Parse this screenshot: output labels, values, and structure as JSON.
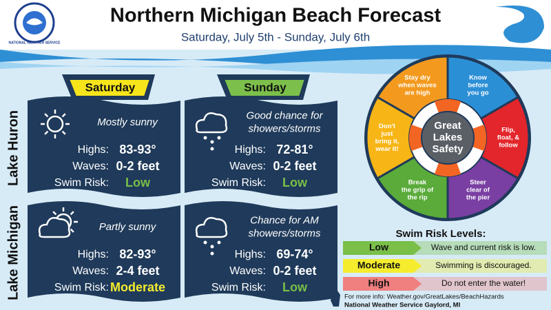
{
  "header": {
    "title": "Northern Michigan Beach Forecast",
    "subtitle": "Saturday, July 5th - Sunday, July 6th",
    "logo_text": "NATIONAL WEATHER SERVICE"
  },
  "days": [
    "Saturday",
    "Sunday"
  ],
  "lakes": [
    "Lake Huron",
    "Lake Michigan"
  ],
  "cells": [
    {
      "condition": [
        "Mostly sunny"
      ],
      "rows": [
        [
          "Highs:",
          "83-93°"
        ],
        [
          "Waves:",
          "0-2 feet"
        ],
        [
          "Swim Risk:",
          "Low"
        ]
      ]
    },
    {
      "condition": [
        "Good chance for",
        "showers/storms"
      ],
      "rows": [
        [
          "Highs:",
          "72-81°"
        ],
        [
          "Waves:",
          "0-2 feet"
        ],
        [
          "Swim Risk:",
          "Low"
        ]
      ]
    },
    {
      "condition": [
        "Partly sunny"
      ],
      "rows": [
        [
          "Highs:",
          "82-93°"
        ],
        [
          "Waves:",
          "2-4 feet"
        ],
        [
          "Swim Risk:",
          "Moderate"
        ]
      ]
    },
    {
      "condition": [
        "Chance for AM",
        "showers/storms"
      ],
      "rows": [
        [
          "Highs:",
          "69-74°"
        ],
        [
          "Waves:",
          "0-2 feet"
        ],
        [
          "Swim Risk:",
          "Low"
        ]
      ]
    }
  ],
  "safety": {
    "center": [
      "Great",
      "Lakes",
      "Safety"
    ],
    "segments": [
      {
        "lines": [
          "Stay dry",
          "when waves",
          "are high"
        ],
        "color": "#f39a1e"
      },
      {
        "lines": [
          "Know",
          "before",
          "you go"
        ],
        "color": "#2b8fd6"
      },
      {
        "lines": [
          "Flip,",
          "float, &",
          "follow"
        ],
        "color": "#e3262b"
      },
      {
        "lines": [
          "Steer",
          "clear of",
          "the pier"
        ],
        "color": "#7a3fa3"
      },
      {
        "lines": [
          "Break",
          "the grip of",
          "the rip"
        ],
        "color": "#5aab3a"
      },
      {
        "lines": [
          "Don't",
          "just",
          "bring it,",
          "wear it!"
        ],
        "color": "#f7b516"
      }
    ]
  },
  "legend": {
    "title": "Swim Risk Levels:",
    "levels": [
      {
        "level": "Low",
        "description": "Wave and current risk is low.",
        "color": "#79bf48"
      },
      {
        "level": "Moderate",
        "description": "Swimming is discouraged.",
        "color": "#f5ec2e"
      },
      {
        "level": "High",
        "description": "Do not enter the water!",
        "color": "#f07f7f"
      }
    ]
  },
  "footer": {
    "info": "For more info:  Weather.gov/GreatLakes/BeachHazards",
    "office": "National Weather Service Gaylord, MI"
  }
}
